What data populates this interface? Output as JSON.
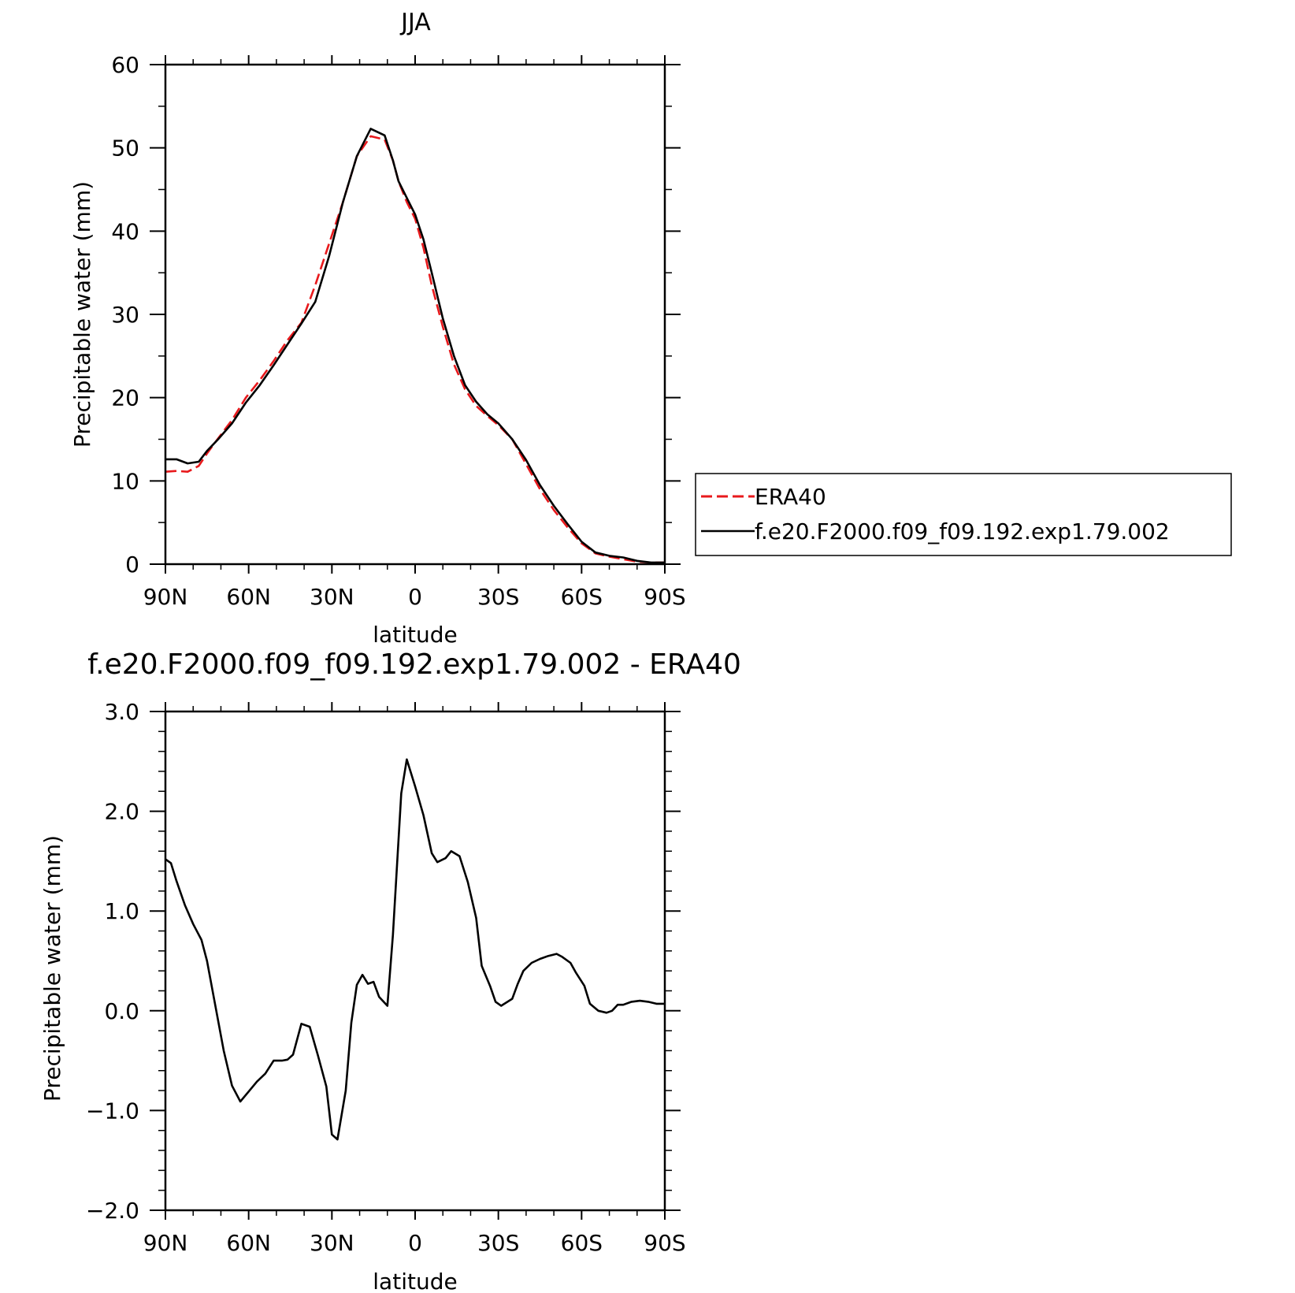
{
  "chart_data": [
    {
      "type": "line",
      "title": "JJA",
      "xlabel": "latitude",
      "ylabel": "Precipitable water (mm)",
      "xlim": [
        90,
        -90
      ],
      "ylim": [
        0,
        60
      ],
      "x_ticks": [
        90,
        60,
        30,
        0,
        -30,
        -60,
        -90
      ],
      "x_tick_labels": [
        "90N",
        "60N",
        "30N",
        "0",
        "30S",
        "60S",
        "90S"
      ],
      "y_ticks": [
        0,
        10,
        20,
        30,
        40,
        50,
        60
      ],
      "y_tick_labels": [
        "0",
        "10",
        "20",
        "30",
        "40",
        "50",
        "60"
      ],
      "legend": {
        "placement": "right",
        "entries": [
          "ERA40",
          "f.e20.F2000.f09_f09.192.exp1.79.002"
        ]
      },
      "series": [
        {
          "name": "ERA40",
          "color": "#e8191c",
          "dash": "dashed",
          "x": [
            90,
            86,
            82,
            78,
            75,
            71,
            66,
            61,
            56,
            51,
            46,
            41,
            36,
            31,
            26,
            21,
            16,
            11,
            8,
            6,
            3,
            0,
            -3,
            -6,
            -10,
            -14,
            -18,
            -22,
            -26,
            -30,
            -35,
            -40,
            -45,
            -50,
            -55,
            -60,
            -65,
            -70,
            -75,
            -80,
            -85,
            -90
          ],
          "y": [
            11.1,
            11.2,
            11.1,
            11.8,
            13.3,
            15.1,
            17.3,
            20.0,
            22.1,
            24.4,
            26.9,
            29.0,
            33.5,
            38.5,
            43.5,
            49.0,
            51.4,
            51.0,
            48.5,
            46.0,
            43.5,
            41.5,
            38.0,
            33.5,
            28.5,
            24.0,
            21.0,
            19.0,
            17.8,
            16.7,
            15.0,
            12.0,
            9.0,
            6.5,
            4.4,
            2.5,
            1.3,
            0.9,
            0.6,
            0.3,
            0.2,
            0.2
          ]
        },
        {
          "name": "f.e20.F2000.f09_f09.192.exp1.79.002",
          "color": "#000000",
          "dash": "solid",
          "x": [
            90,
            86,
            82,
            78,
            75,
            71,
            66,
            61,
            56,
            51,
            46,
            41,
            36,
            31,
            26,
            21,
            16,
            11,
            8,
            6,
            3,
            0,
            -3,
            -6,
            -10,
            -14,
            -18,
            -22,
            -26,
            -30,
            -35,
            -40,
            -45,
            -50,
            -55,
            -60,
            -65,
            -70,
            -75,
            -80,
            -85,
            -90
          ],
          "y": [
            12.6,
            12.6,
            12.1,
            12.3,
            13.6,
            15.0,
            16.9,
            19.4,
            21.5,
            23.9,
            26.4,
            28.9,
            31.5,
            37.0,
            43.5,
            49.0,
            52.3,
            51.5,
            48.5,
            46.0,
            44.0,
            42.0,
            39.0,
            35.0,
            29.5,
            25.0,
            21.5,
            19.5,
            18.0,
            16.9,
            15.0,
            12.5,
            9.5,
            7.0,
            4.8,
            2.7,
            1.4,
            1.0,
            0.8,
            0.4,
            0.2,
            0.2
          ]
        }
      ]
    },
    {
      "type": "line",
      "title": "f.e20.F2000.f09_f09.192.exp1.79.002 - ERA40",
      "xlabel": "latitude",
      "ylabel": "Precipitable water (mm)",
      "xlim": [
        90,
        -90
      ],
      "ylim": [
        -2.0,
        3.0
      ],
      "x_ticks": [
        90,
        60,
        30,
        0,
        -30,
        -60,
        -90
      ],
      "x_tick_labels": [
        "90N",
        "60N",
        "30N",
        "0",
        "30S",
        "60S",
        "90S"
      ],
      "y_ticks": [
        -2.0,
        -1.0,
        0.0,
        1.0,
        2.0,
        3.0
      ],
      "y_tick_labels": [
        "−2.0",
        "−1.0",
        "0.0",
        "1.0",
        "2.0",
        "3.0"
      ],
      "series": [
        {
          "color": "#000000",
          "dash": "solid",
          "x": [
            90,
            88,
            86,
            83,
            80,
            77,
            75,
            72,
            69,
            66,
            63,
            60,
            57,
            54,
            51,
            48,
            46,
            44,
            41,
            38,
            35,
            32,
            30,
            28,
            25,
            23,
            21,
            19,
            17,
            15,
            13,
            10,
            8,
            5,
            3,
            0,
            -3,
            -6,
            -8,
            -11,
            -13,
            -16,
            -19,
            -22,
            -24,
            -27,
            -29,
            -31,
            -35,
            -37,
            -39,
            -42,
            -45,
            -48,
            -51,
            -53,
            -56,
            -58,
            -61,
            -63,
            -66,
            -69,
            -71,
            -73,
            -75,
            -78,
            -81,
            -84,
            -87,
            -90
          ],
          "y": [
            1.52,
            1.48,
            1.3,
            1.06,
            0.87,
            0.71,
            0.5,
            0.05,
            -0.4,
            -0.75,
            -0.91,
            -0.81,
            -0.71,
            -0.63,
            -0.5,
            -0.5,
            -0.49,
            -0.44,
            -0.13,
            -0.16,
            -0.45,
            -0.76,
            -1.24,
            -1.29,
            -0.8,
            -0.12,
            0.26,
            0.36,
            0.27,
            0.29,
            0.14,
            0.05,
            0.76,
            2.18,
            2.52,
            2.25,
            1.96,
            1.58,
            1.49,
            1.53,
            1.6,
            1.55,
            1.29,
            0.93,
            0.45,
            0.25,
            0.09,
            0.05,
            0.12,
            0.27,
            0.4,
            0.48,
            0.52,
            0.55,
            0.57,
            0.54,
            0.48,
            0.38,
            0.25,
            0.07,
            0.0,
            -0.02,
            0.0,
            0.06,
            0.06,
            0.09,
            0.1,
            0.09,
            0.07,
            0.07
          ]
        }
      ]
    }
  ]
}
